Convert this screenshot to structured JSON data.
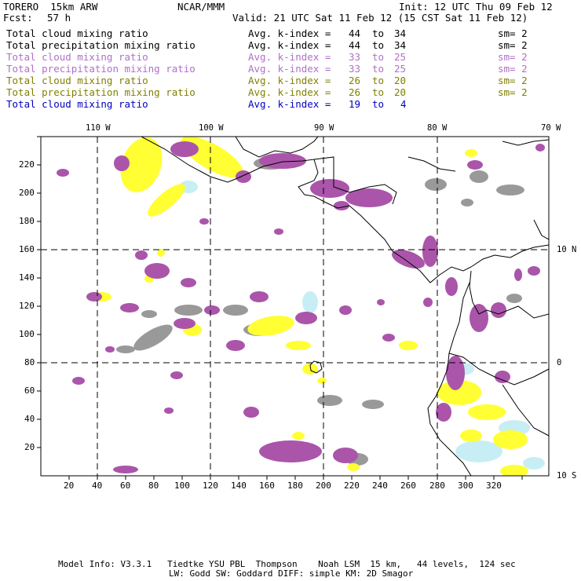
{
  "header": {
    "model": "TORERO  15km ARW",
    "org": "NCAR/MMM",
    "init": "Init: 12 UTC Thu 09 Feb 12",
    "fcst_label": "Fcst:",
    "fcst_value": "57 h",
    "valid": "Valid: 21 UTC Sat 11 Feb 12 (15 CST Sat 11 Feb 12)"
  },
  "legend": [
    {
      "field": "Total cloud mixing ratio",
      "index": "Avg. k-index =",
      "from": "44",
      "to_word": "to",
      "to": "34",
      "sm": "sm= 2",
      "color": "#000000"
    },
    {
      "field": "Total precipitation mixing ratio",
      "index": "Avg. k-index =",
      "from": "44",
      "to_word": "to",
      "to": "34",
      "sm": "sm= 2",
      "color": "#000000"
    },
    {
      "field": "Total cloud mixing ratio",
      "index": "Avg. k-index =",
      "from": "33",
      "to_word": "to",
      "to": "25",
      "sm": "sm= 2",
      "color": "#b070c8"
    },
    {
      "field": "Total precipitation mixing ratio",
      "index": "Avg. k-index =",
      "from": "33",
      "to_word": "to",
      "to": "25",
      "sm": "sm= 2",
      "color": "#b070c8"
    },
    {
      "field": "Total cloud mixing ratio",
      "index": "Avg. k-index =",
      "from": "26",
      "to_word": "to",
      "to": "20",
      "sm": "sm= 2",
      "color": "#808000"
    },
    {
      "field": "Total precipitation mixing ratio",
      "index": "Avg. k-index =",
      "from": "26",
      "to_word": "to",
      "to": "20",
      "sm": "sm= 2",
      "color": "#808000"
    },
    {
      "field": "Total cloud mixing ratio",
      "index": "Avg. k-index =",
      "from": "19",
      "to_word": "to",
      "to": "4",
      "sm": "",
      "color": "#0000c0"
    }
  ],
  "map": {
    "lon_labels": [
      "110 W",
      "100 W",
      "90 W",
      "80 W",
      "70 W"
    ],
    "lat_labels": [
      "10 N",
      "0",
      "10 S"
    ],
    "x_ticks": [
      "20",
      "40",
      "60",
      "80",
      "100",
      "120",
      "140",
      "160",
      "180",
      "200",
      "220",
      "240",
      "260",
      "280",
      "300",
      "320"
    ],
    "y_ticks": [
      "20",
      "40",
      "60",
      "80",
      "100",
      "120",
      "140",
      "160",
      "180",
      "200",
      "220"
    ],
    "colors": {
      "gray": "#999999",
      "purple": "#aa55aa",
      "yellow": "#ffff33",
      "lightblue": "#c8eef5",
      "coast": "#000000"
    }
  },
  "footer": {
    "line1": "Model Info: V3.3.1   Tiedtke YSU PBL  Thompson    Noah LSM  15 km,   44 levels,  124 sec",
    "line2": "LW: Godd SW: Goddard DIFF: simple KM: 2D Smagor"
  }
}
